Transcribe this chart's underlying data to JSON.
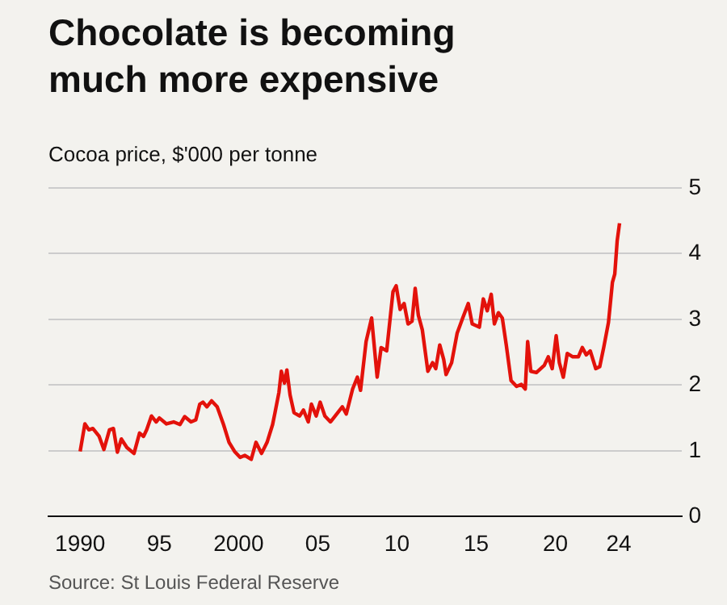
{
  "chart_data": {
    "type": "line",
    "title": "Chocolate is becoming much more expensive",
    "subtitle": "Cocoa price, $'000 per tonne",
    "annotations": [
      "Source: St Louis Federal Reserve"
    ],
    "xlim": [
      1988,
      2028
    ],
    "xticks": [
      {
        "value": 1990,
        "label": "1990"
      },
      {
        "value": 1995,
        "label": "95"
      },
      {
        "value": 2000,
        "label": "2000"
      },
      {
        "value": 2005,
        "label": "05"
      },
      {
        "value": 2010,
        "label": "10"
      },
      {
        "value": 2015,
        "label": "15"
      },
      {
        "value": 2020,
        "label": "20"
      },
      {
        "value": 2024,
        "label": "24"
      }
    ],
    "ylim": [
      0,
      5
    ],
    "yticks": [
      0,
      1,
      2,
      3,
      4,
      5
    ],
    "grid": "y",
    "legend": false,
    "marker": "none",
    "line_style": "solid",
    "series": [
      {
        "color": "#e3120b",
        "x": [
          1990.0,
          1990.3,
          1990.55,
          1990.8,
          1991.2,
          1991.5,
          1991.85,
          1992.1,
          1992.35,
          1992.6,
          1992.95,
          1993.4,
          1993.75,
          1994.0,
          1994.2,
          1994.5,
          1994.8,
          1995.0,
          1995.45,
          1995.9,
          1996.3,
          1996.6,
          1997.0,
          1997.3,
          1997.55,
          1997.75,
          1998.0,
          1998.3,
          1998.65,
          1999.05,
          1999.4,
          1999.75,
          2000.1,
          2000.4,
          2000.8,
          2001.1,
          2001.45,
          2001.8,
          2002.15,
          2002.3,
          2002.55,
          2002.7,
          2002.9,
          2003.05,
          2003.25,
          2003.5,
          2003.85,
          2004.1,
          2004.4,
          2004.6,
          2004.9,
          2005.15,
          2005.45,
          2005.8,
          2006.1,
          2006.55,
          2006.8,
          2007.2,
          2007.5,
          2007.7,
          2008.05,
          2008.4,
          2008.75,
          2009.0,
          2009.35,
          2009.75,
          2009.95,
          2010.2,
          2010.45,
          2010.7,
          2010.95,
          2011.15,
          2011.35,
          2011.6,
          2011.8,
          2011.95,
          2012.25,
          2012.45,
          2012.7,
          2012.95,
          2013.1,
          2013.45,
          2013.8,
          2014.15,
          2014.5,
          2014.75,
          2015.2,
          2015.45,
          2015.7,
          2015.95,
          2016.15,
          2016.4,
          2016.65,
          2016.9,
          2017.2,
          2017.55,
          2017.85,
          2018.1,
          2018.25,
          2018.45,
          2018.8,
          2019.3,
          2019.55,
          2019.8,
          2020.05,
          2020.25,
          2020.5,
          2020.75,
          2021.1,
          2021.45,
          2021.7,
          2021.95,
          2022.2,
          2022.55,
          2022.8,
          2023.05,
          2023.35,
          2023.6,
          2023.75,
          2023.9,
          2024.05
        ],
        "values": [
          0.99,
          1.41,
          1.32,
          1.34,
          1.22,
          1.02,
          1.32,
          1.34,
          0.98,
          1.18,
          1.05,
          0.96,
          1.27,
          1.22,
          1.32,
          1.53,
          1.44,
          1.5,
          1.41,
          1.44,
          1.4,
          1.52,
          1.44,
          1.47,
          1.71,
          1.74,
          1.67,
          1.76,
          1.67,
          1.4,
          1.13,
          0.99,
          0.9,
          0.93,
          0.87,
          1.13,
          0.96,
          1.13,
          1.4,
          1.58,
          1.89,
          2.21,
          2.03,
          2.23,
          1.85,
          1.58,
          1.53,
          1.62,
          1.44,
          1.71,
          1.53,
          1.74,
          1.53,
          1.44,
          1.53,
          1.67,
          1.56,
          1.94,
          2.12,
          1.92,
          2.66,
          3.02,
          2.12,
          2.57,
          2.52,
          3.42,
          3.51,
          3.15,
          3.24,
          2.93,
          2.97,
          3.47,
          3.06,
          2.84,
          2.48,
          2.21,
          2.34,
          2.25,
          2.61,
          2.39,
          2.16,
          2.34,
          2.79,
          3.02,
          3.24,
          2.93,
          2.88,
          3.31,
          3.13,
          3.38,
          2.93,
          3.1,
          3.02,
          2.61,
          2.07,
          1.98,
          2.01,
          1.94,
          2.66,
          2.21,
          2.19,
          2.3,
          2.43,
          2.25,
          2.75,
          2.34,
          2.12,
          2.48,
          2.43,
          2.43,
          2.57,
          2.46,
          2.52,
          2.25,
          2.28,
          2.57,
          2.95,
          3.56,
          3.69,
          4.19,
          4.46
        ]
      }
    ]
  }
}
